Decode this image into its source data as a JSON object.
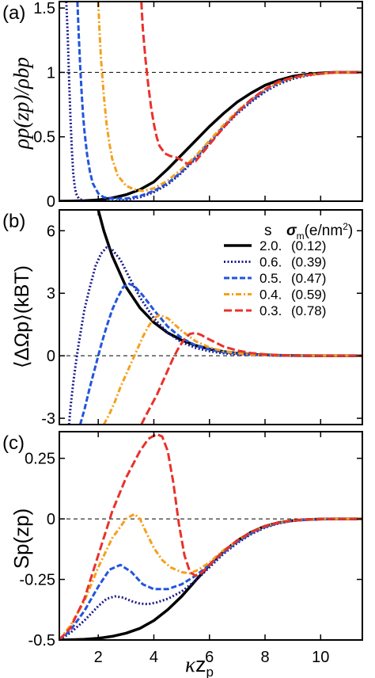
{
  "figure": {
    "xaxis": {
      "label_kappa": "κ",
      "label_z": "z",
      "label_sub": "p",
      "ticks": [
        2,
        4,
        6,
        8,
        10
      ],
      "tick_labels": [
        "2",
        "4",
        "6",
        "8",
        "10"
      ],
      "lim": [
        0.6,
        11.5
      ]
    },
    "legend": {
      "header_s": "s",
      "header_sigma": "σ",
      "header_sigma_sub": "m",
      "header_unit": "(e/nm",
      "header_unit_sup": "2",
      "header_unit_close": ")",
      "entries": [
        {
          "s": "2.0.",
          "sigma": "(0.12)",
          "color": "#000000",
          "style": "solid"
        },
        {
          "s": "0.6.",
          "sigma": "(0.39)",
          "color": "#1a1a8c",
          "style": "dotted"
        },
        {
          "s": "0.5.",
          "sigma": "(0.47)",
          "color": "#2255dd",
          "style": "dashed"
        },
        {
          "s": "0.4.",
          "sigma": "(0.59)",
          "color": "#f5a01a",
          "style": "dashdot"
        },
        {
          "s": "0.3.",
          "sigma": "(0.78)",
          "color": "#e8322a",
          "style": "longdash"
        }
      ]
    }
  },
  "chart_data": [
    {
      "type": "line",
      "panel_label": "(a)",
      "ylabel": "ρp(zp)/ρbp",
      "yticks": [
        0,
        0.5,
        1,
        1.5
      ],
      "ytick_labels": [
        "0",
        "0.5",
        "1",
        "1.5"
      ],
      "ylim": [
        0,
        1.55
      ],
      "reference_line": 1,
      "series": [
        {
          "name": "2.0.",
          "x": [
            0.6,
            1,
            1.5,
            2,
            2.5,
            3,
            3.5,
            4,
            4.5,
            5,
            5.5,
            6,
            6.5,
            7,
            7.5,
            8,
            8.5,
            9,
            9.5,
            10,
            10.5,
            11,
            11.5
          ],
          "y": [
            0.0,
            0.001,
            0.004,
            0.01,
            0.025,
            0.05,
            0.09,
            0.15,
            0.25,
            0.36,
            0.47,
            0.58,
            0.68,
            0.77,
            0.84,
            0.9,
            0.94,
            0.97,
            0.985,
            0.995,
            1.0,
            1.0,
            1.0
          ]
        },
        {
          "name": "0.6.",
          "x": [
            0.85,
            0.9,
            0.95,
            1.0,
            1.05,
            1.1,
            1.15,
            1.2,
            1.3,
            1.5,
            2,
            2.5,
            3,
            3.5,
            4,
            4.5,
            5,
            5.5,
            6,
            6.5,
            7,
            7.5,
            8,
            8.5,
            9,
            9.5,
            10,
            10.5,
            11,
            11.5
          ],
          "y": [
            1.55,
            1.3,
            0.95,
            0.65,
            0.4,
            0.22,
            0.12,
            0.06,
            0.02,
            0.0,
            0.0,
            0.0,
            0.01,
            0.03,
            0.07,
            0.13,
            0.22,
            0.33,
            0.45,
            0.57,
            0.68,
            0.77,
            0.85,
            0.91,
            0.95,
            0.975,
            0.99,
            1.0,
            1.0,
            1.0
          ]
        },
        {
          "name": "0.5.",
          "x": [
            1.25,
            1.3,
            1.35,
            1.4,
            1.45,
            1.5,
            1.6,
            1.7,
            1.8,
            2,
            2.2,
            2.5,
            3,
            3.5,
            4,
            4.5,
            5,
            5.5,
            6,
            6.5,
            7,
            7.5,
            8,
            8.5,
            9,
            9.5,
            10,
            10.5,
            11,
            11.5
          ],
          "y": [
            1.55,
            1.28,
            1.05,
            0.85,
            0.68,
            0.55,
            0.36,
            0.23,
            0.14,
            0.06,
            0.03,
            0.02,
            0.02,
            0.04,
            0.08,
            0.14,
            0.23,
            0.34,
            0.46,
            0.58,
            0.69,
            0.78,
            0.86,
            0.92,
            0.96,
            0.98,
            0.99,
            1.0,
            1.0,
            1.0
          ]
        },
        {
          "name": "0.4.",
          "x": [
            2.0,
            2.05,
            2.1,
            2.2,
            2.3,
            2.4,
            2.5,
            2.7,
            3,
            3.3,
            3.6,
            4,
            4.5,
            5,
            5.5,
            6,
            6.5,
            7,
            7.5,
            8,
            8.5,
            9,
            9.5,
            10,
            10.5,
            11,
            11.5
          ],
          "y": [
            1.55,
            1.3,
            1.1,
            0.82,
            0.6,
            0.45,
            0.33,
            0.2,
            0.12,
            0.09,
            0.08,
            0.1,
            0.16,
            0.25,
            0.35,
            0.47,
            0.59,
            0.7,
            0.79,
            0.87,
            0.92,
            0.96,
            0.98,
            0.99,
            1.0,
            1.0,
            1.0
          ]
        },
        {
          "name": "0.3.",
          "x": [
            3.55,
            3.6,
            3.7,
            3.8,
            3.9,
            4.0,
            4.1,
            4.2,
            4.4,
            4.6,
            4.8,
            5.0,
            5.2,
            5.5,
            6,
            6.5,
            7,
            7.5,
            8,
            8.5,
            9,
            9.5,
            10,
            10.5,
            11,
            11.5
          ],
          "y": [
            1.55,
            1.35,
            1.1,
            0.9,
            0.73,
            0.6,
            0.5,
            0.43,
            0.37,
            0.35,
            0.34,
            0.32,
            0.29,
            0.31,
            0.44,
            0.57,
            0.69,
            0.79,
            0.87,
            0.93,
            0.96,
            0.98,
            0.99,
            1.0,
            1.0,
            1.0
          ]
        }
      ]
    },
    {
      "type": "line",
      "panel_label": "(b)",
      "ylabel": "⟨ΔΩp⟩(kBT)",
      "yticks": [
        -3,
        0,
        3,
        6
      ],
      "ytick_labels": [
        "-3",
        "0",
        "3",
        "6"
      ],
      "ylim": [
        -3.3,
        7.0
      ],
      "reference_line": 0,
      "series": [
        {
          "name": "2.0.",
          "x": [
            2.0,
            2.2,
            2.5,
            3,
            3.5,
            4,
            4.5,
            5,
            5.5,
            6,
            6.5,
            7,
            7.5,
            8,
            8.5,
            9,
            10,
            11,
            11.5
          ],
          "y": [
            7.0,
            6.0,
            4.8,
            3.3,
            2.3,
            1.6,
            1.1,
            0.75,
            0.5,
            0.32,
            0.2,
            0.12,
            0.07,
            0.04,
            0.02,
            0.01,
            0.0,
            0.0,
            0.0
          ]
        },
        {
          "name": "0.6.",
          "x": [
            0.95,
            1.0,
            1.1,
            1.2,
            1.3,
            1.4,
            1.5,
            1.7,
            1.9,
            2.1,
            2.3,
            2.5,
            2.8,
            3.1,
            3.5,
            4,
            4.5,
            5,
            5.5,
            6,
            6.5,
            7,
            7.5,
            8,
            9,
            10,
            11,
            11.5
          ],
          "y": [
            -3.3,
            -2.5,
            -1.3,
            -0.3,
            0.6,
            1.4,
            2.2,
            3.3,
            4.3,
            4.9,
            5.2,
            5.1,
            4.6,
            3.8,
            2.8,
            1.8,
            1.1,
            0.65,
            0.38,
            0.22,
            0.12,
            0.07,
            0.04,
            0.02,
            0.0,
            0.0,
            0.0,
            0.0
          ]
        },
        {
          "name": "0.5.",
          "x": [
            1.35,
            1.5,
            1.7,
            1.9,
            2.1,
            2.3,
            2.5,
            2.7,
            2.9,
            3.1,
            3.3,
            3.6,
            4,
            4.5,
            5,
            5.5,
            6,
            6.5,
            7,
            7.5,
            8,
            9,
            10,
            11,
            11.5
          ],
          "y": [
            -3.3,
            -2.6,
            -1.5,
            -0.5,
            0.5,
            1.4,
            2.2,
            2.8,
            3.3,
            3.45,
            3.35,
            2.9,
            2.2,
            1.4,
            0.85,
            0.5,
            0.3,
            0.17,
            0.1,
            0.05,
            0.03,
            0.01,
            0.0,
            0.0,
            0.0
          ]
        },
        {
          "name": "0.4.",
          "x": [
            2.2,
            2.4,
            2.6,
            2.8,
            3.0,
            3.2,
            3.4,
            3.6,
            3.8,
            4.0,
            4.2,
            4.5,
            5,
            5.5,
            6,
            6.5,
            7,
            7.5,
            8,
            9,
            10,
            11,
            11.5
          ],
          "y": [
            -3.3,
            -2.8,
            -2.2,
            -1.5,
            -0.9,
            -0.3,
            0.3,
            0.9,
            1.4,
            1.8,
            1.95,
            1.8,
            1.2,
            0.7,
            0.4,
            0.22,
            0.12,
            0.06,
            0.03,
            0.01,
            0.0,
            0.0,
            0.0
          ]
        },
        {
          "name": "0.3.",
          "x": [
            3.55,
            3.7,
            3.9,
            4.1,
            4.3,
            4.5,
            4.7,
            4.9,
            5.1,
            5.3,
            5.5,
            5.7,
            6,
            6.5,
            7,
            7.5,
            8,
            8.5,
            9,
            10,
            11,
            11.5
          ],
          "y": [
            -3.3,
            -2.9,
            -2.4,
            -1.9,
            -1.3,
            -0.7,
            -0.1,
            0.4,
            0.8,
            1.05,
            1.1,
            1.0,
            0.78,
            0.45,
            0.25,
            0.13,
            0.07,
            0.03,
            0.01,
            0.0,
            0.0,
            0.0
          ]
        }
      ]
    },
    {
      "type": "line",
      "panel_label": "(c)",
      "ylabel": "Sp(zp)",
      "yticks": [
        -0.5,
        -0.25,
        0,
        0.25
      ],
      "ytick_labels": [
        "-0.5",
        "-0.25",
        "0",
        "0.25"
      ],
      "ylim": [
        -0.5,
        0.36
      ],
      "reference_line": 0,
      "series": [
        {
          "name": "2.0.",
          "x": [
            0.6,
            1,
            1.5,
            2,
            2.5,
            3,
            3.5,
            4,
            4.5,
            5,
            5.5,
            6,
            6.5,
            7,
            7.5,
            8,
            8.5,
            9,
            9.5,
            10,
            10.5,
            11,
            11.5
          ],
          "y": [
            -0.5,
            -0.499,
            -0.497,
            -0.493,
            -0.485,
            -0.472,
            -0.452,
            -0.42,
            -0.375,
            -0.32,
            -0.255,
            -0.19,
            -0.135,
            -0.09,
            -0.055,
            -0.03,
            -0.015,
            -0.007,
            -0.003,
            -0.001,
            0.0,
            0.0,
            0.0
          ]
        },
        {
          "name": "0.6.",
          "x": [
            0.6,
            1,
            1.5,
            2,
            2.3,
            2.6,
            2.9,
            3.2,
            3.5,
            3.8,
            4.1,
            4.5,
            5,
            5.5,
            6,
            6.5,
            7,
            7.5,
            8,
            8.5,
            9,
            9.5,
            10,
            10.5,
            11,
            11.5
          ],
          "y": [
            -0.5,
            -0.47,
            -0.42,
            -0.36,
            -0.33,
            -0.32,
            -0.325,
            -0.34,
            -0.35,
            -0.352,
            -0.345,
            -0.33,
            -0.3,
            -0.255,
            -0.2,
            -0.145,
            -0.1,
            -0.063,
            -0.036,
            -0.018,
            -0.008,
            -0.003,
            -0.001,
            0.0,
            0.0,
            0.0
          ]
        },
        {
          "name": "0.5.",
          "x": [
            0.6,
            1,
            1.5,
            2,
            2.4,
            2.8,
            3.2,
            3.6,
            4,
            4.5,
            5,
            5.5,
            6,
            6.5,
            7,
            7.5,
            8,
            8.5,
            9,
            9.5,
            10,
            10.5,
            11,
            11.5
          ],
          "y": [
            -0.5,
            -0.46,
            -0.38,
            -0.28,
            -0.21,
            -0.19,
            -0.22,
            -0.27,
            -0.29,
            -0.29,
            -0.27,
            -0.235,
            -0.19,
            -0.14,
            -0.095,
            -0.06,
            -0.034,
            -0.017,
            -0.008,
            -0.003,
            -0.001,
            0.0,
            0.0,
            0.0
          ]
        },
        {
          "name": "0.4.",
          "x": [
            0.6,
            1,
            1.5,
            2,
            2.5,
            3,
            3.3,
            3.5,
            3.7,
            4,
            4.3,
            4.6,
            5,
            5.3,
            5.6,
            6,
            6.5,
            7,
            7.5,
            8,
            8.5,
            9,
            9.5,
            10,
            10.5,
            11,
            11.5
          ],
          "y": [
            -0.5,
            -0.44,
            -0.34,
            -0.2,
            -0.08,
            0.0,
            0.02,
            0.0,
            -0.05,
            -0.12,
            -0.17,
            -0.2,
            -0.22,
            -0.225,
            -0.21,
            -0.18,
            -0.13,
            -0.09,
            -0.055,
            -0.03,
            -0.015,
            -0.007,
            -0.003,
            -0.001,
            0.0,
            0.0,
            0.0
          ]
        },
        {
          "name": "0.3.",
          "x": [
            0.6,
            1,
            1.5,
            2,
            2.5,
            3,
            3.5,
            3.8,
            4.1,
            4.3,
            4.5,
            4.7,
            4.9,
            5.1,
            5.3,
            5.5,
            5.7,
            6,
            6.5,
            7,
            7.5,
            8,
            8.5,
            9,
            9.5,
            10,
            10.5,
            11,
            11.5
          ],
          "y": [
            -0.5,
            -0.45,
            -0.33,
            -0.15,
            0.03,
            0.17,
            0.28,
            0.33,
            0.35,
            0.34,
            0.28,
            0.15,
            -0.02,
            -0.15,
            -0.22,
            -0.235,
            -0.225,
            -0.19,
            -0.135,
            -0.09,
            -0.055,
            -0.03,
            -0.015,
            -0.007,
            -0.003,
            -0.001,
            0.0,
            0.0,
            0.0
          ]
        }
      ]
    }
  ]
}
